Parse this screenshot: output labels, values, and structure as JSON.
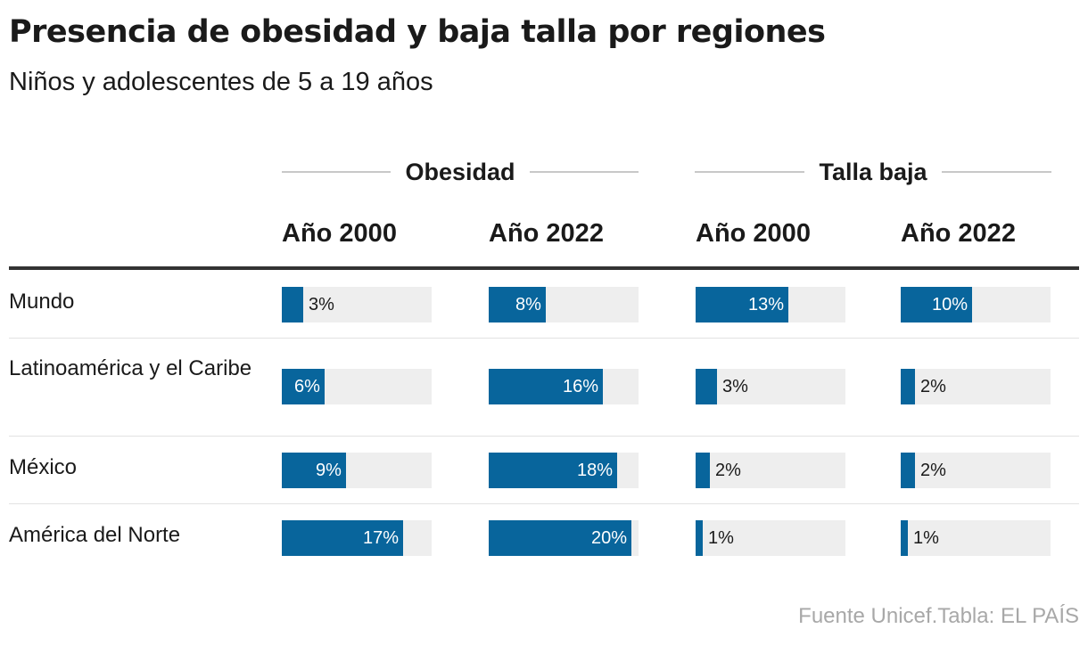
{
  "title": "Presencia de obesidad y baja talla por regiones",
  "subtitle": "Niños y adolescentes de 5 a 19 años",
  "source": "Fuente Unicef.Tabla: EL PAÍS",
  "colors": {
    "bar": "#08659c",
    "track": "#eeeeee",
    "text": "#1a1a1a",
    "source": "#a8a8a8"
  },
  "chart_data": {
    "type": "table",
    "title": "Presencia de obesidad y baja talla por regiones",
    "subtitle": "Niños y adolescentes de 5 a 19 años",
    "groups": [
      {
        "label": "Obesidad",
        "columns": [
          "Año 2000",
          "Año 2022"
        ]
      },
      {
        "label": "Talla baja",
        "columns": [
          "Año 2000",
          "Año 2022"
        ]
      }
    ],
    "scale_max": 21,
    "rows": [
      {
        "label": "Mundo",
        "values": [
          3,
          8,
          13,
          10
        ],
        "labels": [
          "3%",
          "8%",
          "13%",
          "10%"
        ]
      },
      {
        "label": "Latinoamérica y el Caribe",
        "values": [
          6,
          16,
          3,
          2
        ],
        "labels": [
          "6%",
          "16%",
          "3%",
          "2%"
        ]
      },
      {
        "label": "México",
        "values": [
          9,
          18,
          2,
          2
        ],
        "labels": [
          "9%",
          "18%",
          "2%",
          "2%"
        ]
      },
      {
        "label": "América del Norte",
        "values": [
          17,
          20,
          1,
          1
        ],
        "labels": [
          "17%",
          "20%",
          "1%",
          "1%"
        ]
      }
    ]
  }
}
